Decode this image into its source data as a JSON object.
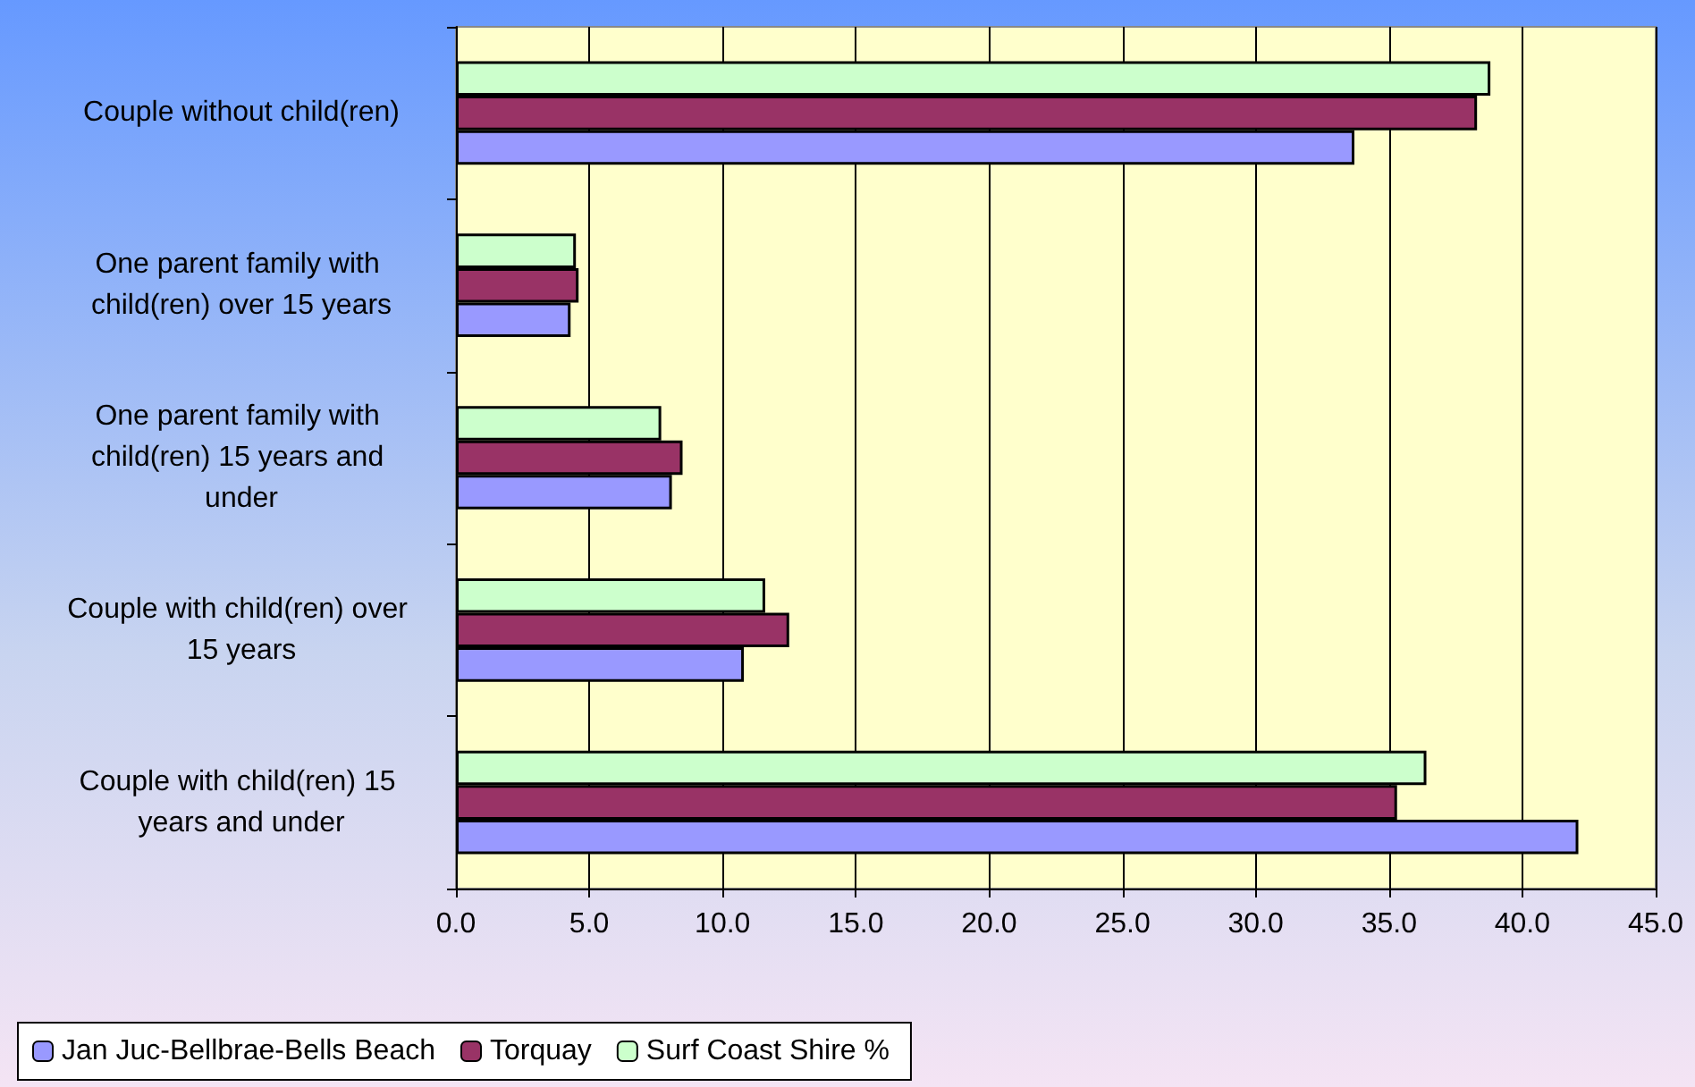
{
  "chart_data": {
    "type": "bar",
    "orientation": "horizontal",
    "categories": [
      "Couple without child(ren)",
      "One parent family with child(ren) over 15 years",
      "One parent family with child(ren) 15 years and under",
      "Couple with child(ren) over 15 years",
      "Couple with child(ren) 15 years and under"
    ],
    "series": [
      {
        "name": "Jan Juc-Bellbrae-Bells Beach",
        "color": "#9999ff",
        "values": [
          33.7,
          4.3,
          8.1,
          10.8,
          42.1
        ]
      },
      {
        "name": "Torquay",
        "color": "#993366",
        "values": [
          38.3,
          4.6,
          8.5,
          12.5,
          35.3
        ]
      },
      {
        "name": "Surf Coast Shire %",
        "color": "#ccffcc",
        "values": [
          38.8,
          4.5,
          7.7,
          11.6,
          36.4
        ]
      }
    ],
    "xlim": [
      0,
      45
    ],
    "xticks": [
      {
        "value": 0,
        "label": "0.0"
      },
      {
        "value": 5,
        "label": "5.0"
      },
      {
        "value": 10,
        "label": "10.0"
      },
      {
        "value": 15,
        "label": "15.0"
      },
      {
        "value": 20,
        "label": "20.0"
      },
      {
        "value": 25,
        "label": "25.0"
      },
      {
        "value": 30,
        "label": "30.0"
      },
      {
        "value": 35,
        "label": "35.0"
      },
      {
        "value": 40,
        "label": "40.0"
      },
      {
        "value": 45,
        "label": "45.0"
      }
    ],
    "grid": "x",
    "legend": "bottom left"
  }
}
